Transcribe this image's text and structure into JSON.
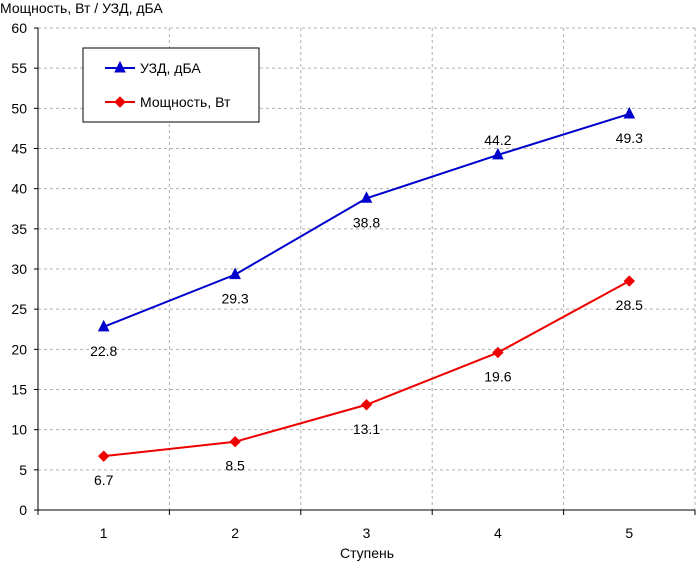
{
  "chart_data": {
    "type": "line",
    "title": "",
    "ylabel": "Мощность, Вт / УЗД, дБА",
    "xlabel": "Ступень",
    "categories": [
      "1",
      "2",
      "3",
      "4",
      "5"
    ],
    "ylim": [
      0,
      60
    ],
    "yticks": [
      0,
      5,
      10,
      15,
      20,
      25,
      30,
      35,
      40,
      45,
      50,
      55,
      60
    ],
    "grid": true,
    "legend_position": "top-left",
    "series": [
      {
        "name": "УЗД, дБА",
        "color": "#0000CC",
        "marker": "triangle",
        "values": [
          22.8,
          29.3,
          38.8,
          44.2,
          49.3
        ],
        "labels": [
          "22.8",
          "29.3",
          "38.8",
          "44.2",
          "49.3"
        ]
      },
      {
        "name": "Мощность, Вт",
        "color": "#EE0000",
        "marker": "diamond",
        "values": [
          6.7,
          8.5,
          13.1,
          19.6,
          28.5
        ],
        "labels": [
          "6.7",
          "8.5",
          "13.1",
          "19.6",
          "28.5"
        ]
      }
    ]
  }
}
